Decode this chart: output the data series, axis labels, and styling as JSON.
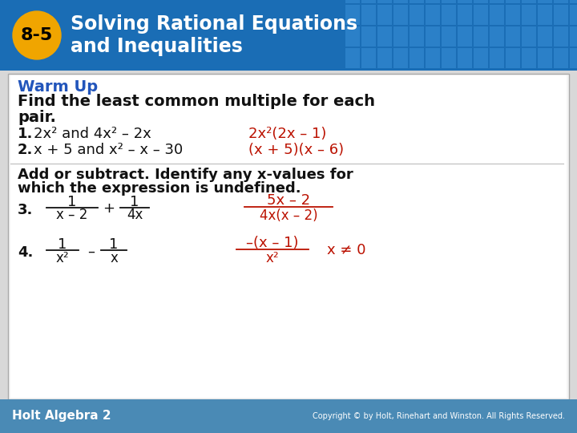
{
  "title_number": "8-5",
  "title_text_line1": "Solving Rational Equations",
  "title_text_line2": "and Inequalities",
  "header_bg_color": "#1a6db5",
  "header_text_color": "#ffffff",
  "badge_color": "#f0a500",
  "badge_text_color": "#000000",
  "body_bg_color": "#ffffff",
  "body_border_color": "#b0b0b0",
  "warm_up_color": "#2255bb",
  "black_color": "#111111",
  "red_color": "#bb1100",
  "footer_bg_color": "#4a8ab5",
  "footer_text_color": "#ffffff",
  "footer_left": "Holt Algebra 2",
  "footer_right": "Copyright © by Holt, Rinehart and Winston. All Rights Reserved.",
  "dash": "–",
  "neq": "≠",
  "sup2": "²"
}
